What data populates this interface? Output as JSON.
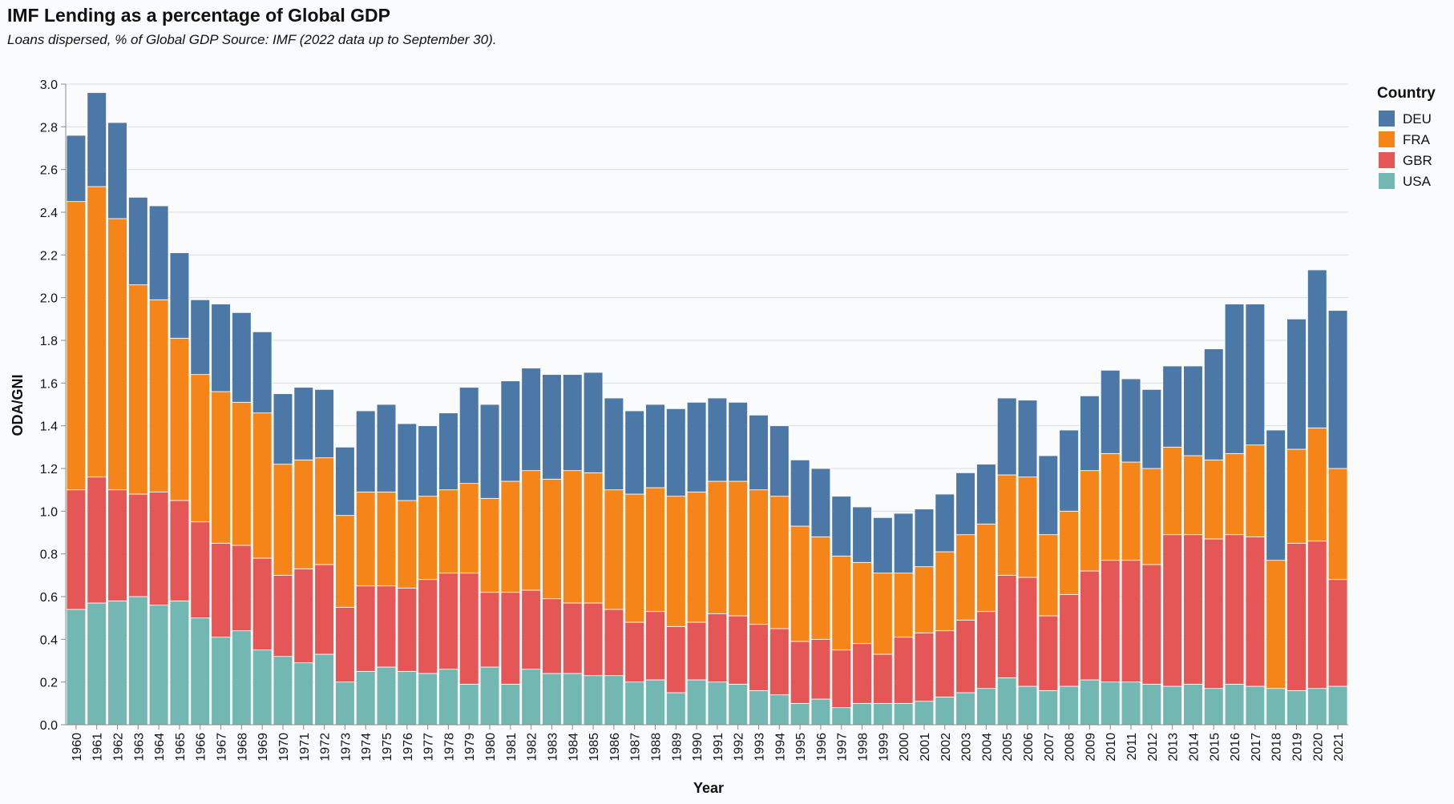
{
  "chart_data": {
    "type": "bar",
    "stacked": true,
    "title": "IMF Lending as a percentage of Global GDP",
    "subtitle": "Loans dispersed, % of Global GDP Source: IMF (2022 data up to September 30).",
    "xlabel": "Year",
    "ylabel": "ODA/GNI",
    "ylim": [
      0,
      3.0
    ],
    "yticks": [
      "0.0",
      "0.2",
      "0.4",
      "0.6",
      "0.8",
      "1.0",
      "1.2",
      "1.4",
      "1.6",
      "1.8",
      "2.0",
      "2.2",
      "2.4",
      "2.6",
      "2.8",
      "3.0"
    ],
    "grid": true,
    "legend": {
      "title": "Country",
      "placement": "top-right"
    },
    "categories": [
      "1960",
      "1961",
      "1962",
      "1963",
      "1964",
      "1965",
      "1966",
      "1967",
      "1968",
      "1969",
      "1970",
      "1971",
      "1972",
      "1973",
      "1974",
      "1975",
      "1976",
      "1977",
      "1978",
      "1979",
      "1980",
      "1981",
      "1982",
      "1983",
      "1984",
      "1985",
      "1986",
      "1987",
      "1988",
      "1989",
      "1990",
      "1991",
      "1992",
      "1993",
      "1994",
      "1995",
      "1996",
      "1997",
      "1998",
      "1999",
      "2000",
      "2001",
      "2002",
      "2003",
      "2004",
      "2005",
      "2006",
      "2007",
      "2008",
      "2009",
      "2010",
      "2011",
      "2012",
      "2013",
      "2014",
      "2015",
      "2016",
      "2017",
      "2018",
      "2019",
      "2020",
      "2021"
    ],
    "series": [
      {
        "name": "USA",
        "color": "#72b7b2",
        "values": [
          0.54,
          0.57,
          0.58,
          0.6,
          0.56,
          0.58,
          0.5,
          0.41,
          0.44,
          0.35,
          0.32,
          0.29,
          0.33,
          0.2,
          0.25,
          0.27,
          0.25,
          0.24,
          0.26,
          0.19,
          0.27,
          0.19,
          0.26,
          0.24,
          0.24,
          0.23,
          0.23,
          0.2,
          0.21,
          0.15,
          0.21,
          0.2,
          0.19,
          0.16,
          0.14,
          0.1,
          0.12,
          0.08,
          0.1,
          0.1,
          0.1,
          0.11,
          0.13,
          0.15,
          0.17,
          0.22,
          0.18,
          0.16,
          0.18,
          0.21,
          0.2,
          0.2,
          0.19,
          0.18,
          0.19,
          0.17,
          0.19,
          0.18,
          0.17,
          0.16,
          0.17,
          0.18
        ]
      },
      {
        "name": "GBR",
        "color": "#e45756",
        "values": [
          0.56,
          0.59,
          0.52,
          0.48,
          0.53,
          0.47,
          0.45,
          0.44,
          0.4,
          0.43,
          0.38,
          0.44,
          0.42,
          0.35,
          0.4,
          0.38,
          0.39,
          0.44,
          0.45,
          0.52,
          0.35,
          0.43,
          0.37,
          0.35,
          0.33,
          0.34,
          0.31,
          0.28,
          0.32,
          0.31,
          0.27,
          0.32,
          0.32,
          0.31,
          0.31,
          0.29,
          0.28,
          0.27,
          0.28,
          0.23,
          0.31,
          0.32,
          0.31,
          0.34,
          0.36,
          0.48,
          0.51,
          0.35,
          0.43,
          0.51,
          0.57,
          0.57,
          0.56,
          0.71,
          0.7,
          0.7,
          0.7,
          0.7,
          0.0,
          0.69,
          0.69,
          0.5
        ]
      },
      {
        "name": "FRA",
        "color": "#f58518",
        "values": [
          1.35,
          1.36,
          1.27,
          0.98,
          0.9,
          0.76,
          0.69,
          0.71,
          0.67,
          0.68,
          0.52,
          0.51,
          0.5,
          0.43,
          0.44,
          0.44,
          0.41,
          0.39,
          0.39,
          0.42,
          0.44,
          0.52,
          0.56,
          0.56,
          0.62,
          0.61,
          0.56,
          0.6,
          0.58,
          0.61,
          0.61,
          0.62,
          0.63,
          0.63,
          0.62,
          0.54,
          0.48,
          0.44,
          0.38,
          0.38,
          0.3,
          0.31,
          0.37,
          0.4,
          0.41,
          0.47,
          0.47,
          0.38,
          0.39,
          0.47,
          0.5,
          0.46,
          0.45,
          0.41,
          0.37,
          0.37,
          0.38,
          0.43,
          0.6,
          0.44,
          0.53,
          0.52
        ]
      },
      {
        "name": "DEU",
        "color": "#4c78a8",
        "values": [
          0.31,
          0.44,
          0.45,
          0.41,
          0.44,
          0.4,
          0.35,
          0.41,
          0.42,
          0.38,
          0.33,
          0.34,
          0.32,
          0.32,
          0.38,
          0.41,
          0.36,
          0.33,
          0.36,
          0.45,
          0.44,
          0.47,
          0.48,
          0.49,
          0.45,
          0.47,
          0.43,
          0.39,
          0.39,
          0.41,
          0.42,
          0.39,
          0.37,
          0.35,
          0.33,
          0.31,
          0.32,
          0.28,
          0.26,
          0.26,
          0.28,
          0.27,
          0.27,
          0.29,
          0.28,
          0.36,
          0.36,
          0.37,
          0.38,
          0.35,
          0.39,
          0.39,
          0.37,
          0.38,
          0.42,
          0.52,
          0.7,
          0.66,
          0.61,
          0.61,
          0.74,
          0.74
        ]
      }
    ]
  }
}
